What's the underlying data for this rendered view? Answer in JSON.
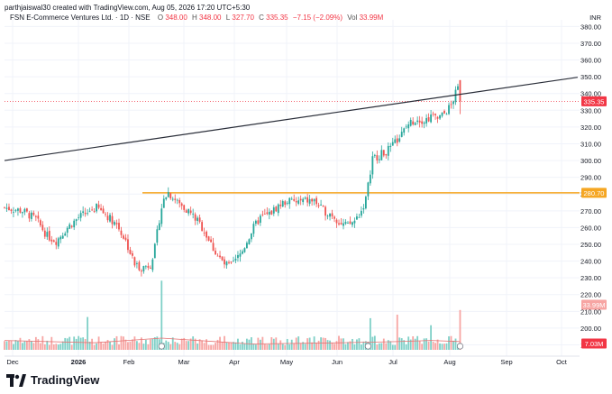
{
  "header": {
    "attribution": "parthjaiswal30 created with TradingView.com, Aug 05, 2026 17:20 UTC+5:30",
    "symbol": "FSN E-Commerce Ventures Ltd. · 1D · NSE",
    "o_label": "O",
    "o_value": "348.00",
    "h_label": "H",
    "h_value": "348.00",
    "l_label": "L",
    "l_value": "327.70",
    "c_label": "C",
    "c_value": "335.35",
    "change": "−7.15 (−2.09%)",
    "vol_label": "Vol",
    "vol_value": "33.99M"
  },
  "footer": {
    "brand": "TradingView"
  },
  "colors": {
    "up": "#26a69a",
    "down": "#ef5350",
    "price_label": "#f23645",
    "level_line": "#f5a623",
    "trend_line": "#2a2e39",
    "grid": "#f0f3fa"
  },
  "chart_data": {
    "type": "candlestick",
    "currency_label": "INR",
    "y_ticks": [
      190,
      200,
      210,
      220,
      230,
      240,
      250,
      260,
      270,
      280,
      290,
      300,
      310,
      320,
      330,
      340,
      350,
      360,
      370,
      380
    ],
    "x_ticks": [
      "Dec",
      "2026",
      "Feb",
      "Mar",
      "Apr",
      "May",
      "Jun",
      "Jul",
      "Aug",
      "Sep",
      "Oct"
    ],
    "last_price": 335.35,
    "last_price_label": "335.35",
    "horizontal_level": 280.7,
    "horizontal_level_label": "280.70",
    "last_volume_label": "33.99M",
    "volume_ma_label": "7.03M",
    "trendline": [
      {
        "x": 0,
        "price": 300
      },
      {
        "x": 210,
        "price": 350.5
      }
    ],
    "price_path": [
      [
        0,
        272
      ],
      [
        8,
        270
      ],
      [
        14,
        265
      ],
      [
        19,
        255
      ],
      [
        23,
        252
      ],
      [
        28,
        260
      ],
      [
        33,
        266
      ],
      [
        38,
        270
      ],
      [
        41,
        272
      ],
      [
        45,
        268
      ],
      [
        50,
        262
      ],
      [
        54,
        252
      ],
      [
        58,
        238
      ],
      [
        61,
        236
      ],
      [
        65,
        238
      ],
      [
        67,
        248
      ],
      [
        69,
        265
      ],
      [
        71,
        279
      ],
      [
        73,
        281
      ],
      [
        75,
        278
      ],
      [
        78,
        274
      ],
      [
        82,
        270
      ],
      [
        86,
        264
      ],
      [
        89,
        258
      ],
      [
        92,
        250
      ],
      [
        95,
        243
      ],
      [
        98,
        238
      ],
      [
        101,
        237
      ],
      [
        104,
        242
      ],
      [
        106,
        246
      ],
      [
        108,
        252
      ],
      [
        111,
        260
      ],
      [
        114,
        266
      ],
      [
        118,
        268
      ],
      [
        122,
        273
      ],
      [
        126,
        276
      ],
      [
        130,
        275
      ],
      [
        134,
        276
      ],
      [
        138,
        276
      ],
      [
        142,
        270
      ],
      [
        146,
        268
      ],
      [
        150,
        262
      ],
      [
        153,
        261
      ],
      [
        156,
        264
      ],
      [
        159,
        270
      ],
      [
        161,
        277
      ],
      [
        162,
        285
      ],
      [
        163,
        294
      ],
      [
        164,
        301
      ],
      [
        168,
        304
      ],
      [
        172,
        307
      ],
      [
        176,
        314
      ],
      [
        180,
        322
      ],
      [
        184,
        325
      ],
      [
        187,
        324
      ],
      [
        190,
        326
      ],
      [
        193,
        325
      ],
      [
        196,
        328
      ],
      [
        199,
        333
      ],
      [
        201,
        340
      ],
      [
        202,
        343
      ],
      [
        203,
        335.35
      ]
    ],
    "volume_spikes": [
      {
        "x": 37,
        "volume_m": 28
      },
      {
        "x": 70,
        "volume_m": 59
      },
      {
        "x": 163,
        "volume_m": 27
      },
      {
        "x": 175,
        "volume_m": 30
      },
      {
        "x": 190,
        "volume_m": 21
      },
      {
        "x": 203,
        "volume_m": 33.99
      }
    ],
    "volume_ma_path": [
      [
        0,
        8
      ],
      [
        40,
        6
      ],
      [
        70,
        10
      ],
      [
        110,
        5
      ],
      [
        150,
        6
      ],
      [
        175,
        7
      ],
      [
        190,
        8
      ],
      [
        203,
        7.03
      ]
    ],
    "event_markers_x": [
      70,
      162,
      203
    ]
  }
}
